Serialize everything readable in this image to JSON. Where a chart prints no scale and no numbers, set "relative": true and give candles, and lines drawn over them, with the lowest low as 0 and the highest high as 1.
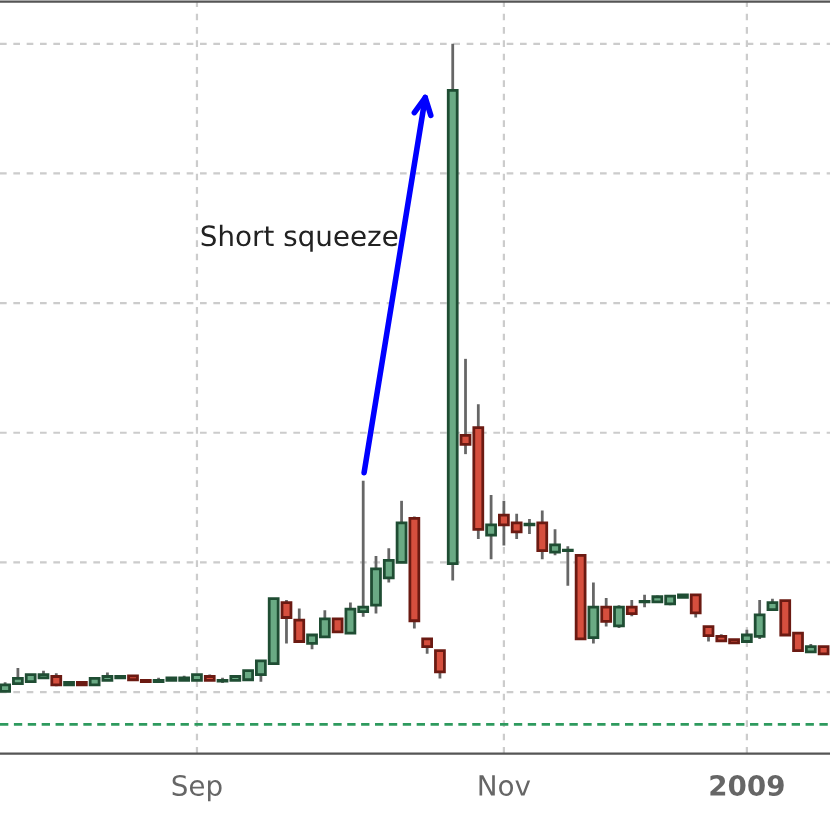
{
  "chart_data": {
    "type": "candlestick",
    "relative": true,
    "categories": [
      null,
      null,
      null,
      null,
      null,
      null,
      null,
      null,
      null,
      null,
      null,
      null,
      null,
      null,
      null,
      "Sep",
      null,
      null,
      null,
      null,
      null,
      null,
      null,
      null,
      null,
      null,
      null,
      null,
      null,
      null,
      null,
      null,
      null,
      null,
      null,
      null,
      null,
      null,
      null,
      "Nov",
      null,
      null,
      null,
      null,
      null,
      null,
      null,
      null,
      null,
      null,
      null,
      null,
      null,
      null,
      null,
      null,
      null,
      null,
      "2009",
      null,
      null,
      null,
      null,
      null,
      null
    ],
    "ohlc": [
      [
        0.001,
        0.015,
        0,
        0.011
      ],
      [
        0.013,
        0.037,
        0.012,
        0.021
      ],
      [
        0.016,
        0.028,
        0.015,
        0.027
      ],
      [
        0.022,
        0.033,
        0.022,
        0.027
      ],
      [
        0.024,
        0.029,
        0.009,
        0.011
      ],
      [
        0.011,
        0.015,
        0.011,
        0.015
      ],
      [
        0.015,
        0.015,
        0.011,
        0.011
      ],
      [
        0.011,
        0.021,
        0.011,
        0.021
      ],
      [
        0.018,
        0.03,
        0.018,
        0.024
      ],
      [
        0.022,
        0.024,
        0.022,
        0.024
      ],
      [
        0.025,
        0.025,
        0.019,
        0.019
      ],
      [
        0.018,
        0.018,
        0.016,
        0.016
      ],
      [
        0.016,
        0.022,
        0.016,
        0.018
      ],
      [
        0.018,
        0.022,
        0.018,
        0.022
      ],
      [
        0.018,
        0.025,
        0.018,
        0.022
      ],
      [
        0.018,
        0.027,
        0.018,
        0.027
      ],
      [
        0.024,
        0.027,
        0.018,
        0.018
      ],
      [
        0.017,
        0.022,
        0.014,
        0.018
      ],
      [
        0.018,
        0.024,
        0.018,
        0.024
      ],
      [
        0.019,
        0.033,
        0.019,
        0.033
      ],
      [
        0.027,
        0.048,
        0.016,
        0.048
      ],
      [
        0.044,
        0.144,
        0.044,
        0.144
      ],
      [
        0.138,
        0.142,
        0.075,
        0.115
      ],
      [
        0.111,
        0.129,
        0.078,
        0.078
      ],
      [
        0.075,
        0.088,
        0.066,
        0.088
      ],
      [
        0.085,
        0.126,
        0.085,
        0.113
      ],
      [
        0.113,
        0.113,
        0.093,
        0.093
      ],
      [
        0.091,
        0.138,
        0.091,
        0.128
      ],
      [
        0.124,
        0.326,
        0.116,
        0.131
      ],
      [
        0.134,
        0.21,
        0.121,
        0.19
      ],
      [
        0.176,
        0.222,
        0.169,
        0.203
      ],
      [
        0.2,
        0.295,
        0.2,
        0.261
      ],
      [
        0.268,
        0.271,
        0.098,
        0.11
      ],
      [
        0.082,
        0.082,
        0.059,
        0.07
      ],
      [
        0.064,
        0.064,
        0.021,
        0.031
      ],
      [
        0.198,
        1,
        0.172,
        0.928
      ],
      [
        0.396,
        0.514,
        0.367,
        0.382
      ],
      [
        0.408,
        0.444,
        0.236,
        0.251
      ],
      [
        0.242,
        0.304,
        0.205,
        0.258
      ],
      [
        0.273,
        0.295,
        0.226,
        0.258
      ],
      [
        0.261,
        0.275,
        0.236,
        0.247
      ],
      [
        0.258,
        0.267,
        0.244,
        0.259
      ],
      [
        0.261,
        0.28,
        0.205,
        0.218
      ],
      [
        0.216,
        0.251,
        0.211,
        0.227
      ],
      [
        0.218,
        0.225,
        0.164,
        0.219
      ],
      [
        0.211,
        0.211,
        0.082,
        0.082
      ],
      [
        0.084,
        0.169,
        0.075,
        0.131
      ],
      [
        0.131,
        0.145,
        0.101,
        0.109
      ],
      [
        0.102,
        0.134,
        0.099,
        0.131
      ],
      [
        0.131,
        0.142,
        0.117,
        0.121
      ],
      [
        0.139,
        0.15,
        0.131,
        0.14
      ],
      [
        0.139,
        0.149,
        0.138,
        0.147
      ],
      [
        0.136,
        0.148,
        0.134,
        0.148
      ],
      [
        0.146,
        0.15,
        0.146,
        0.15
      ],
      [
        0.15,
        0.15,
        0.115,
        0.122
      ],
      [
        0.101,
        0.101,
        0.078,
        0.087
      ],
      [
        0.086,
        0.089,
        0.079,
        0.079
      ],
      [
        0.081,
        0.081,
        0.076,
        0.076
      ],
      [
        0.078,
        0.096,
        0.078,
        0.088
      ],
      [
        0.086,
        0.142,
        0.082,
        0.119
      ],
      [
        0.127,
        0.144,
        0.125,
        0.138
      ],
      [
        0.141,
        0.141,
        0.088,
        0.088
      ],
      [
        0.091,
        0.091,
        0.064,
        0.064
      ],
      [
        0.062,
        0.074,
        0.062,
        0.07
      ],
      [
        0.07,
        0.07,
        0.059,
        0.059
      ]
    ],
    "colors": [
      "#6aaa84",
      "#6aaa84",
      "#6aaa84",
      "#6aaa84",
      "#d64f3e",
      "#6aaa84",
      "#d64f3e",
      "#6aaa84",
      "#6aaa84",
      "#6aaa84",
      "#d64f3e",
      "#d64f3e",
      "#6aaa84",
      "#6aaa84",
      "#6aaa84",
      "#6aaa84",
      "#d64f3e",
      "#6aaa84",
      "#6aaa84",
      "#6aaa84",
      "#6aaa84",
      "#6aaa84",
      "#d64f3e",
      "#d64f3e",
      "#6aaa84",
      "#6aaa84",
      "#d64f3e",
      "#6aaa84",
      "#6aaa84",
      "#6aaa84",
      "#6aaa84",
      "#6aaa84",
      "#d64f3e",
      "#d64f3e",
      "#d64f3e",
      "#6aaa84",
      "#d64f3e",
      "#d64f3e",
      "#6aaa84",
      "#d64f3e",
      "#d64f3e",
      "#6aaa84",
      "#d64f3e",
      "#6aaa84",
      "#6aaa84",
      "#d64f3e",
      "#6aaa84",
      "#d64f3e",
      "#6aaa84",
      "#d64f3e",
      "#6aaa84",
      "#6aaa84",
      "#6aaa84",
      "#6aaa84",
      "#d64f3e",
      "#d64f3e",
      "#d64f3e",
      "#d64f3e",
      "#6aaa84",
      "#6aaa84",
      "#6aaa84",
      "#d64f3e",
      "#d64f3e",
      "#6aaa84",
      "#d64f3e"
    ],
    "ref_lines": [
      {
        "axis": "y",
        "value": -0.05,
        "color": "#2e9a5e",
        "line_style": "dashed"
      }
    ],
    "annotations": [
      "Short squeeze"
    ],
    "grid": true
  }
}
